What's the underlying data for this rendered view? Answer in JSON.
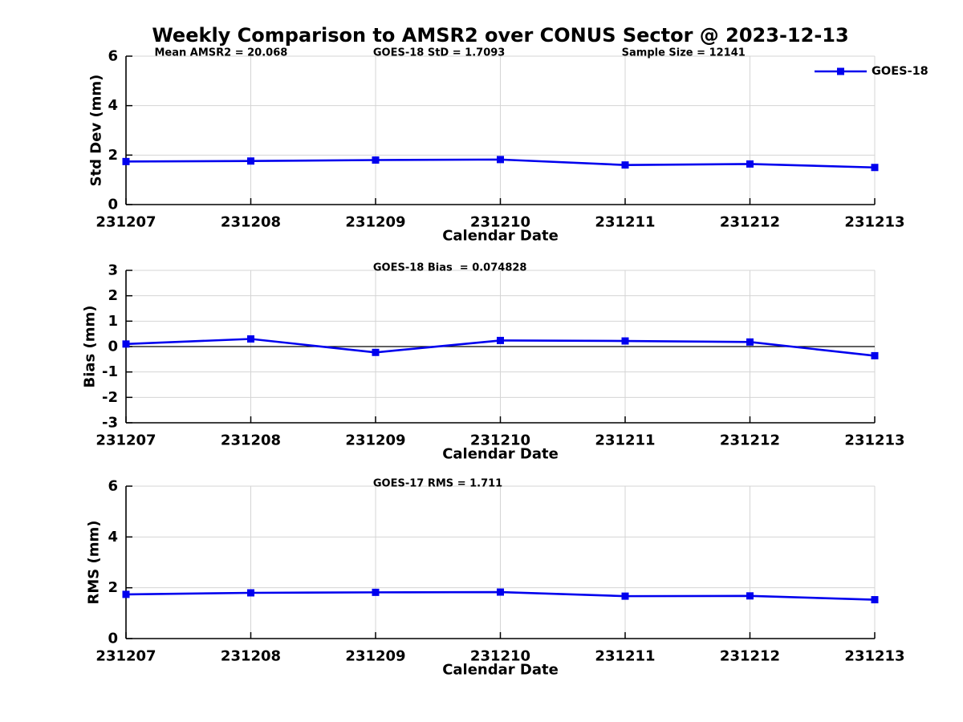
{
  "title": "Weekly Comparison to AMSR2 over CONUS Sector @ 2023-12-13",
  "colors": {
    "series_blue": "#0000ee",
    "grid_gray": "#d4d4d4",
    "axis_black": "#000000",
    "background": "#ffffff"
  },
  "chart_data": [
    {
      "type": "line",
      "id": "std-dev",
      "xlabel": "Calendar Date",
      "ylabel": "Std Dev (mm)",
      "ylim": [
        0,
        6
      ],
      "yticks": [
        0,
        2,
        4,
        6
      ],
      "categories": [
        "231207",
        "231208",
        "231209",
        "231210",
        "231211",
        "231212",
        "231213"
      ],
      "series": [
        {
          "name": "GOES-18",
          "values": [
            1.74,
            1.76,
            1.8,
            1.82,
            1.6,
            1.64,
            1.5
          ]
        }
      ],
      "annotations": [
        {
          "text": "Mean AMSR2 = 20.068",
          "xfrac": 0.038
        },
        {
          "text": "GOES-18 StD = 1.7093",
          "xfrac": 0.33
        },
        {
          "text": "Sample Size = 12141",
          "xfrac": 0.662
        }
      ],
      "legend": {
        "label": "GOES-18",
        "position": "top-right"
      },
      "grid": true,
      "zero_line": false
    },
    {
      "type": "line",
      "id": "bias",
      "xlabel": "Calendar Date",
      "ylabel": "Bias (mm)",
      "ylim": [
        -3,
        3
      ],
      "yticks": [
        -3,
        -2,
        -1,
        0,
        1,
        2,
        3
      ],
      "categories": [
        "231207",
        "231208",
        "231209",
        "231210",
        "231211",
        "231212",
        "231213"
      ],
      "series": [
        {
          "name": "GOES-18",
          "values": [
            0.1,
            0.3,
            -0.23,
            0.24,
            0.22,
            0.18,
            -0.36
          ]
        }
      ],
      "annotations": [
        {
          "text": "GOES-18 Bias  = 0.074828",
          "xfrac": 0.33
        }
      ],
      "legend": null,
      "grid": true,
      "zero_line": true
    },
    {
      "type": "line",
      "id": "rms",
      "xlabel": "Calendar Date",
      "ylabel": "RMS (mm)",
      "ylim": [
        0,
        6
      ],
      "yticks": [
        0,
        2,
        4,
        6
      ],
      "categories": [
        "231207",
        "231208",
        "231209",
        "231210",
        "231211",
        "231212",
        "231213"
      ],
      "series": [
        {
          "name": "GOES-17 RMS = 1.711",
          "values": [
            1.74,
            1.8,
            1.82,
            1.83,
            1.67,
            1.68,
            1.53
          ]
        }
      ],
      "annotations": [
        {
          "text": "GOES-17 RMS = 1.711",
          "xfrac": 0.33
        }
      ],
      "legend": null,
      "grid": true,
      "zero_line": false
    }
  ]
}
